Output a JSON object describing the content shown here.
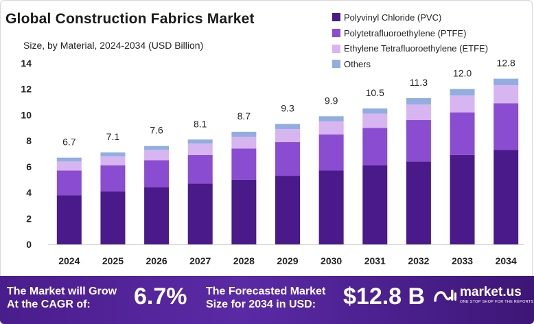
{
  "chart_data": {
    "type": "bar",
    "stacked": true,
    "title": "Global Construction Fabrics Market",
    "subtitle": "Size, by Material, 2024-2034 (USD Billion)",
    "categories": [
      "2024",
      "2025",
      "2026",
      "2027",
      "2028",
      "2029",
      "2030",
      "2031",
      "2032",
      "2033",
      "2034"
    ],
    "totals": [
      "6.7",
      "7.1",
      "7.6",
      "8.1",
      "8.7",
      "9.3",
      "9.9",
      "10.5",
      "11.3",
      "12.0",
      "12.8"
    ],
    "series": [
      {
        "name": "Polyvinyl Chloride (PVC)",
        "color": "#4a1a8a",
        "values": [
          3.8,
          4.1,
          4.4,
          4.7,
          5.0,
          5.3,
          5.7,
          6.1,
          6.4,
          6.9,
          7.3
        ]
      },
      {
        "name": "Polytetrafluoroethylene (PTFE)",
        "color": "#8a4cd0",
        "values": [
          1.9,
          2.0,
          2.1,
          2.2,
          2.4,
          2.6,
          2.8,
          2.9,
          3.2,
          3.3,
          3.6
        ]
      },
      {
        "name": "Ethylene Tetrafluoroethylene (ETFE)",
        "color": "#d7b5f0",
        "values": [
          0.7,
          0.7,
          0.8,
          0.9,
          0.9,
          1.0,
          1.0,
          1.1,
          1.2,
          1.3,
          1.4
        ]
      },
      {
        "name": "Others",
        "color": "#92aee0",
        "values": [
          0.3,
          0.3,
          0.3,
          0.3,
          0.4,
          0.4,
          0.4,
          0.4,
          0.5,
          0.5,
          0.5
        ]
      }
    ],
    "yticks": [
      "0",
      "2",
      "4",
      "6",
      "8",
      "10",
      "12",
      "14"
    ],
    "ylim": [
      0,
      14
    ],
    "legend_position": "top-right"
  },
  "banner": {
    "cagr_label_1": "The Market will Grow",
    "cagr_label_2": "At the CAGR of:",
    "cagr_value": "6.7%",
    "forecast_label_1": "The Forecasted Market",
    "forecast_label_2": "Size for 2034 in USD:",
    "forecast_value": "$12.8 B",
    "brand_name": "market.us",
    "brand_tagline": "ONE STOP SHOP FOR THE REPORTS"
  }
}
